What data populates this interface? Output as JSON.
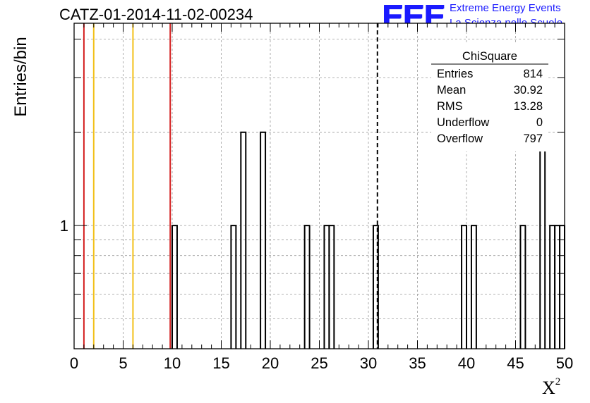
{
  "chart_data": {
    "type": "bar",
    "title": "CATZ-01-2014-11-02-00234",
    "xlabel": "X",
    "xlabel_sup": "2",
    "ylabel": "Entries/bin",
    "xlim": [
      0,
      50
    ],
    "ylim": [
      0.4,
      4.5
    ],
    "y_scale": "log",
    "grid": true,
    "x_ticks": [
      "0",
      "5",
      "10",
      "15",
      "20",
      "25",
      "30",
      "35",
      "40",
      "45",
      "50"
    ],
    "y_ticks": [
      "1"
    ],
    "bin_width": 0.5,
    "bins": [
      {
        "x": 10.0,
        "count": 1
      },
      {
        "x": 16.0,
        "count": 1
      },
      {
        "x": 17.0,
        "count": 2
      },
      {
        "x": 19.0,
        "count": 2
      },
      {
        "x": 23.5,
        "count": 1
      },
      {
        "x": 25.5,
        "count": 1
      },
      {
        "x": 26.0,
        "count": 1
      },
      {
        "x": 30.5,
        "count": 1
      },
      {
        "x": 39.5,
        "count": 1
      },
      {
        "x": 40.5,
        "count": 1
      },
      {
        "x": 45.5,
        "count": 1
      },
      {
        "x": 47.5,
        "count": 2
      },
      {
        "x": 48.5,
        "count": 1
      },
      {
        "x": 49.0,
        "count": 1
      },
      {
        "x": 49.5,
        "count": 1
      }
    ],
    "reference_lines": [
      {
        "x": 1.0,
        "color": "#d42020",
        "style": "solid"
      },
      {
        "x": 2.0,
        "color": "#f2c018",
        "style": "solid"
      },
      {
        "x": 6.0,
        "color": "#f2c018",
        "style": "solid"
      },
      {
        "x": 9.8,
        "color": "#d42020",
        "style": "solid"
      },
      {
        "x": 30.92,
        "color": "#000000",
        "style": "dashed"
      }
    ],
    "stats_box": {
      "name": "ChiSquare",
      "rows": [
        {
          "label": "Entries",
          "value": "814"
        },
        {
          "label": "Mean",
          "value": "30.92"
        },
        {
          "label": "RMS",
          "value": "13.28"
        },
        {
          "label": "Underflow",
          "value": "0"
        },
        {
          "label": "Overflow",
          "value": "797"
        }
      ]
    }
  },
  "logo": {
    "mark": "EEE",
    "line1": "Extreme Energy Events",
    "line2": "La Scienza nelle Scuole"
  },
  "colors": {
    "logo_blue": "#1a1aff",
    "red_line": "#d42020",
    "yellow_line": "#f2c018",
    "grid": "#9a9a9a"
  }
}
